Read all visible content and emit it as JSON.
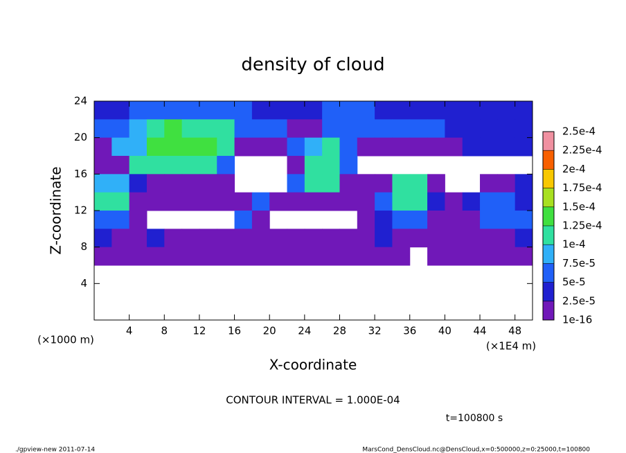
{
  "chart_data": {
    "type": "heatmap",
    "title": "density of cloud",
    "x_label": "X-coordinate",
    "y_label": "Z-coordinate",
    "x_unit_left": "(×1000 m)",
    "x_unit_right": "(×1E4 m)",
    "contour_note": "CONTOUR INTERVAL = 1.000E-04",
    "time_note": "t=100800 s",
    "footer_left": "./gpview-new  2011-07-14",
    "footer_right": "MarsCond_DensCloud.nc@DensCloud,x=0:500000,z=0:25000,t=100800",
    "xlim": [
      0,
      50
    ],
    "ylim": [
      0,
      24
    ],
    "xticks": [
      4,
      8,
      12,
      16,
      20,
      24,
      28,
      32,
      36,
      40,
      44,
      48
    ],
    "yticks": [
      4,
      8,
      12,
      16,
      20,
      24
    ],
    "x": [
      1,
      3,
      5,
      7,
      9,
      11,
      13,
      15,
      17,
      19,
      21,
      23,
      25,
      27,
      29,
      31,
      33,
      35,
      37,
      39,
      41,
      43,
      45,
      47,
      49
    ],
    "y": [
      23,
      21,
      19,
      17,
      15,
      13,
      11,
      9,
      7
    ],
    "z": [
      [
        4e-05,
        4e-05,
        5e-05,
        5e-05,
        6e-05,
        6e-05,
        6e-05,
        5e-05,
        5e-05,
        4e-05,
        4e-05,
        3e-05,
        4e-05,
        6e-05,
        6e-05,
        5e-05,
        4e-05,
        4e-05,
        4e-05,
        4e-05,
        3e-05,
        3e-05,
        4e-05,
        4e-05,
        4e-05
      ],
      [
        6e-05,
        6e-05,
        8e-05,
        0.00012,
        0.00013,
        0.00012,
        0.00012,
        0.0001,
        6e-05,
        5e-05,
        5e-05,
        2e-05,
        2e-05,
        6e-05,
        7e-05,
        6e-05,
        5e-05,
        5e-05,
        5e-05,
        5e-05,
        4e-05,
        3e-05,
        3e-05,
        3e-05,
        4e-05
      ],
      [
        2e-05,
        8e-05,
        8e-05,
        0.00013,
        0.00013,
        0.00013,
        0.00013,
        0.00011,
        2e-05,
        2e-05,
        2e-05,
        7e-05,
        8e-05,
        0.0001,
        7e-05,
        2e-05,
        2e-05,
        2e-05,
        2e-05,
        2e-05,
        2e-05,
        4e-05,
        4e-05,
        4e-05,
        4e-05
      ],
      [
        2e-05,
        2e-05,
        0.00011,
        0.00012,
        0.00012,
        0.00012,
        0.00011,
        6e-05,
        null,
        null,
        null,
        2e-05,
        0.00011,
        0.00011,
        6e-05,
        null,
        null,
        null,
        null,
        null,
        null,
        null,
        null,
        null,
        null
      ],
      [
        9e-05,
        9e-05,
        3e-05,
        2e-05,
        2e-05,
        2e-05,
        2e-05,
        2e-05,
        null,
        null,
        null,
        5e-05,
        0.00011,
        0.00011,
        2e-05,
        2e-05,
        2e-05,
        0.0001,
        0.00011,
        2e-05,
        null,
        null,
        2e-05,
        2e-05,
        3e-05
      ],
      [
        0.0001,
        0.0001,
        2e-05,
        2e-05,
        2e-05,
        2e-05,
        2e-05,
        2e-05,
        2e-05,
        5e-05,
        2e-05,
        2e-05,
        2e-05,
        2e-05,
        2e-05,
        2e-05,
        5e-05,
        0.0001,
        0.0001,
        4e-05,
        2e-05,
        4e-05,
        5e-05,
        5e-05,
        4e-05
      ],
      [
        6e-05,
        6e-05,
        2e-05,
        null,
        null,
        null,
        null,
        null,
        5e-05,
        2e-05,
        null,
        null,
        null,
        null,
        null,
        2e-05,
        4e-05,
        6e-05,
        5e-05,
        2e-05,
        2e-05,
        2e-05,
        5e-05,
        5e-05,
        5e-05
      ],
      [
        3e-05,
        2e-05,
        2e-05,
        3e-05,
        2e-05,
        2e-05,
        2e-05,
        2e-05,
        2e-05,
        2e-05,
        2e-05,
        2e-05,
        2e-05,
        2e-05,
        2e-05,
        2e-05,
        3e-05,
        2e-05,
        2e-05,
        2e-05,
        2e-05,
        2e-05,
        2e-05,
        2e-05,
        3e-05
      ],
      [
        1e-05,
        1e-05,
        1e-05,
        1e-05,
        1e-05,
        1e-05,
        1e-05,
        1e-05,
        1e-05,
        1e-05,
        1e-05,
        1e-05,
        1e-05,
        1e-05,
        1e-05,
        1e-05,
        1e-05,
        1e-05,
        null,
        1e-05,
        1e-05,
        1e-05,
        1e-05,
        1e-05,
        1e-05
      ]
    ],
    "levels": [
      {
        "value": 1e-16,
        "label": "1e-16"
      },
      {
        "value": 2.5e-05,
        "label": "2.5e-5"
      },
      {
        "value": 5e-05,
        "label": "5e-5"
      },
      {
        "value": 7.5e-05,
        "label": "7.5e-5"
      },
      {
        "value": 0.0001,
        "label": "1e-4"
      },
      {
        "value": 0.000125,
        "label": "1.25e-4"
      },
      {
        "value": 0.00015,
        "label": "1.5e-4"
      },
      {
        "value": 0.000175,
        "label": "1.75e-4"
      },
      {
        "value": 0.0002,
        "label": "2e-4"
      },
      {
        "value": 0.000225,
        "label": "2.25e-4"
      },
      {
        "value": 0.00025,
        "label": "2.5e-4"
      }
    ],
    "colors": [
      "#7018b8",
      "#2020d0",
      "#2060f8",
      "#30b0f8",
      "#30e0a0",
      "#40e040",
      "#a8e020",
      "#f8c800",
      "#f86000",
      "#f090a0"
    ]
  }
}
